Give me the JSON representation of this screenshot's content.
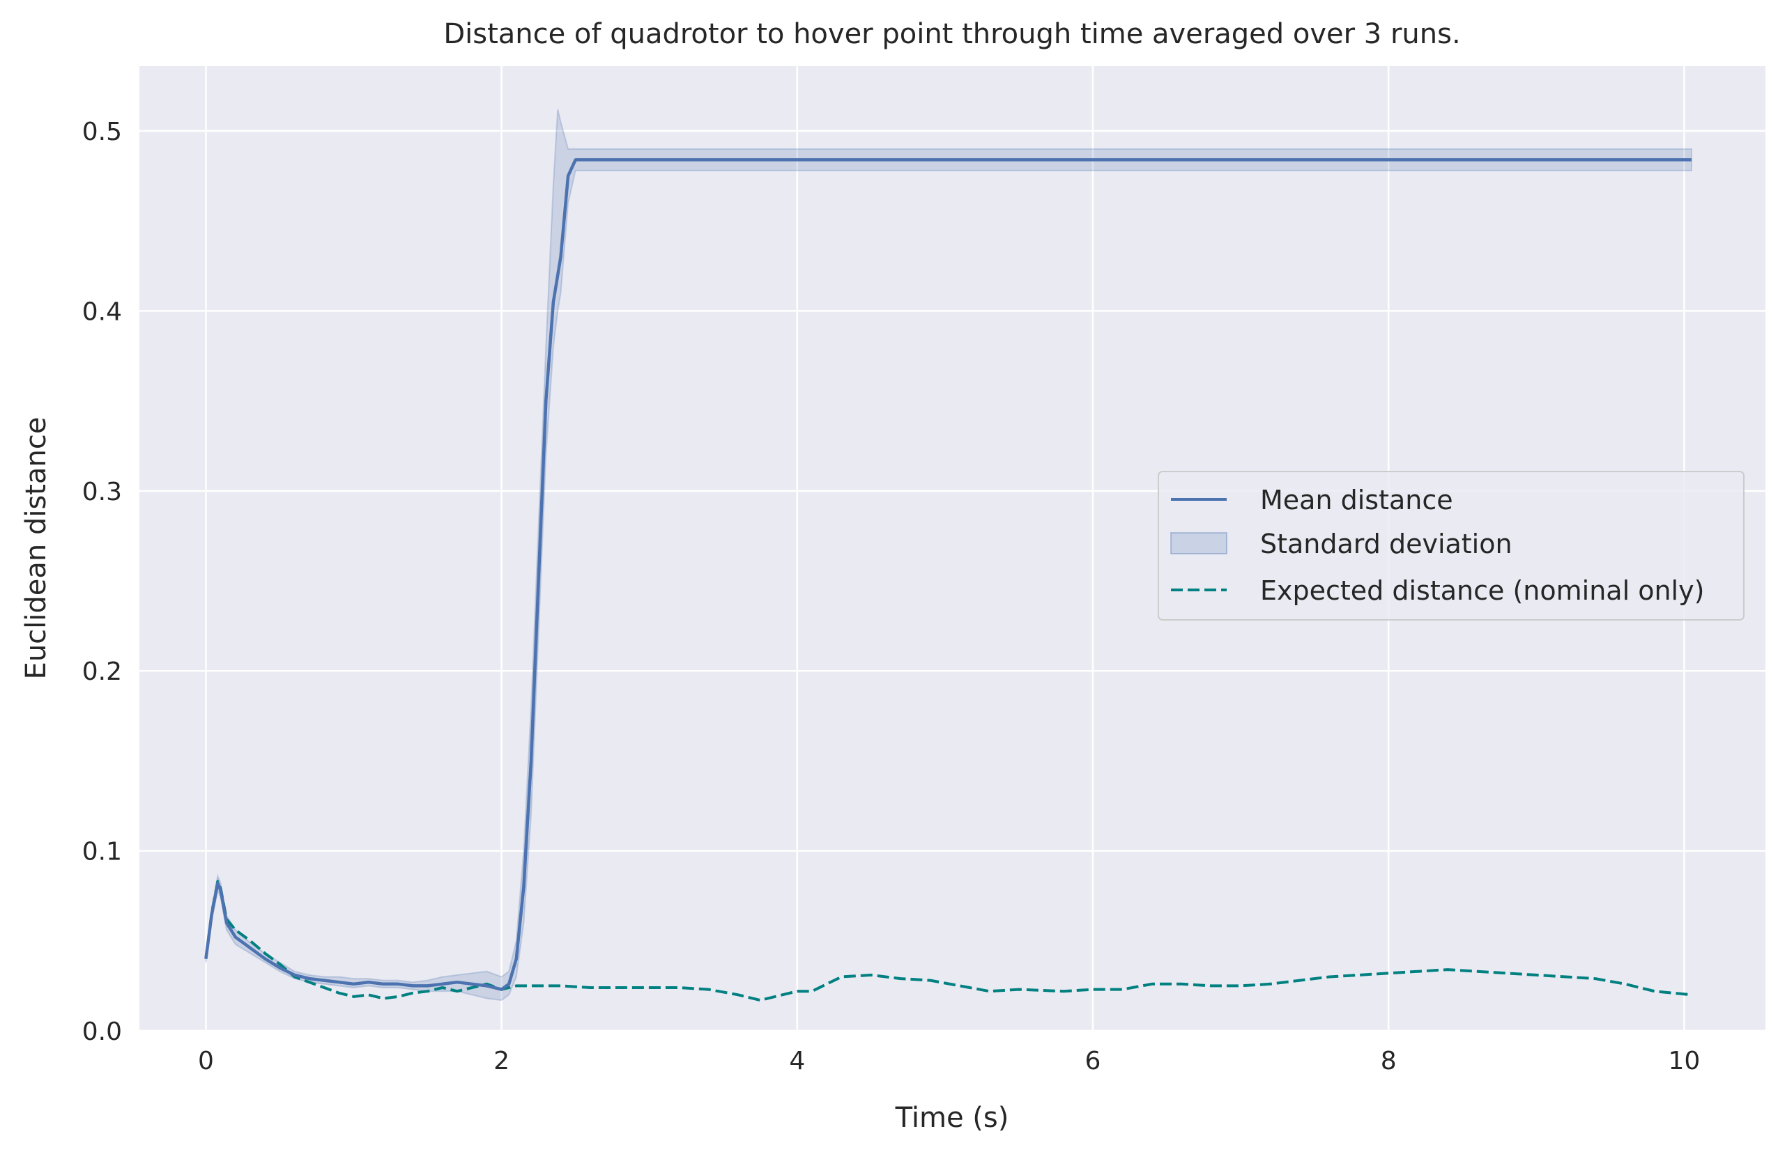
{
  "chart_data": {
    "type": "line",
    "title": "Distance of quadrotor to hover point through time averaged over 3 runs.",
    "xlabel": "Time (s)",
    "ylabel": "Euclidean distance",
    "xlim": [
      -0.45,
      10.55
    ],
    "ylim": [
      0.0,
      0.536
    ],
    "xticks": [
      "0",
      "2",
      "4",
      "6",
      "8",
      "10"
    ],
    "yticks": [
      "0.0",
      "0.1",
      "0.2",
      "0.3",
      "0.4",
      "0.5"
    ],
    "grid": true,
    "legend_position": "center right",
    "legend": [
      {
        "label": "Mean distance",
        "style": "line"
      },
      {
        "label": "Standard deviation",
        "style": "band"
      },
      {
        "label": "Expected distance (nominal only)",
        "style": "dashed"
      }
    ],
    "colors": {
      "background": "#eaeaf2",
      "grid": "#ffffff",
      "mean": "#4c72b0",
      "band": "#4c72b0",
      "expected": "#008080"
    },
    "series": [
      {
        "name": "Mean distance",
        "x": [
          0.0,
          0.04,
          0.08,
          0.1,
          0.14,
          0.2,
          0.3,
          0.4,
          0.5,
          0.6,
          0.7,
          0.8,
          0.9,
          1.0,
          1.1,
          1.2,
          1.3,
          1.4,
          1.5,
          1.6,
          1.7,
          1.8,
          1.9,
          2.0,
          2.05,
          2.1,
          2.15,
          2.2,
          2.25,
          2.3,
          2.35,
          2.4,
          2.45,
          2.5,
          10.05
        ],
        "y": [
          0.04,
          0.065,
          0.082,
          0.078,
          0.06,
          0.052,
          0.046,
          0.04,
          0.035,
          0.031,
          0.029,
          0.028,
          0.027,
          0.026,
          0.027,
          0.026,
          0.026,
          0.025,
          0.025,
          0.026,
          0.027,
          0.026,
          0.025,
          0.023,
          0.026,
          0.04,
          0.08,
          0.15,
          0.25,
          0.35,
          0.405,
          0.43,
          0.475,
          0.484,
          0.484
        ]
      },
      {
        "name": "Standard deviation",
        "x": [
          0.0,
          0.04,
          0.08,
          0.1,
          0.14,
          0.2,
          0.3,
          0.4,
          0.5,
          0.6,
          0.7,
          0.8,
          0.9,
          1.0,
          1.1,
          1.2,
          1.3,
          1.4,
          1.5,
          1.6,
          1.7,
          1.8,
          1.9,
          2.0,
          2.05,
          2.1,
          2.15,
          2.2,
          2.25,
          2.3,
          2.35,
          2.38,
          2.4,
          2.45,
          2.5,
          10.05
        ],
        "lower": [
          0.038,
          0.062,
          0.078,
          0.074,
          0.056,
          0.048,
          0.043,
          0.038,
          0.033,
          0.029,
          0.027,
          0.026,
          0.025,
          0.024,
          0.025,
          0.024,
          0.024,
          0.023,
          0.022,
          0.022,
          0.022,
          0.02,
          0.018,
          0.017,
          0.02,
          0.03,
          0.06,
          0.12,
          0.22,
          0.32,
          0.38,
          0.4,
          0.41,
          0.46,
          0.478,
          0.478
        ],
        "upper": [
          0.042,
          0.068,
          0.086,
          0.082,
          0.064,
          0.056,
          0.049,
          0.043,
          0.038,
          0.033,
          0.031,
          0.03,
          0.03,
          0.029,
          0.029,
          0.028,
          0.028,
          0.027,
          0.028,
          0.03,
          0.031,
          0.032,
          0.033,
          0.03,
          0.033,
          0.05,
          0.1,
          0.18,
          0.28,
          0.38,
          0.47,
          0.512,
          0.505,
          0.49,
          0.49,
          0.49
        ]
      },
      {
        "name": "Expected distance (nominal only)",
        "x": [
          0.0,
          0.04,
          0.08,
          0.1,
          0.14,
          0.2,
          0.3,
          0.4,
          0.5,
          0.6,
          0.7,
          0.8,
          0.9,
          1.0,
          1.1,
          1.2,
          1.3,
          1.4,
          1.5,
          1.6,
          1.7,
          1.8,
          1.9,
          2.0,
          2.1,
          2.2,
          2.4,
          2.6,
          2.8,
          3.0,
          3.2,
          3.4,
          3.6,
          3.75,
          3.9,
          4.0,
          4.1,
          4.2,
          4.3,
          4.5,
          4.7,
          4.9,
          5.1,
          5.3,
          5.5,
          5.8,
          6.0,
          6.2,
          6.4,
          6.6,
          6.8,
          7.0,
          7.2,
          7.4,
          7.6,
          7.8,
          8.0,
          8.2,
          8.4,
          8.6,
          8.8,
          9.0,
          9.2,
          9.4,
          9.6,
          9.8,
          10.05
        ],
        "y": [
          0.04,
          0.066,
          0.083,
          0.079,
          0.062,
          0.056,
          0.05,
          0.043,
          0.037,
          0.03,
          0.027,
          0.024,
          0.021,
          0.019,
          0.02,
          0.018,
          0.019,
          0.021,
          0.022,
          0.024,
          0.022,
          0.024,
          0.026,
          0.023,
          0.025,
          0.025,
          0.025,
          0.024,
          0.024,
          0.024,
          0.024,
          0.023,
          0.02,
          0.017,
          0.02,
          0.022,
          0.022,
          0.026,
          0.03,
          0.031,
          0.029,
          0.028,
          0.025,
          0.022,
          0.023,
          0.022,
          0.023,
          0.023,
          0.026,
          0.026,
          0.025,
          0.025,
          0.026,
          0.028,
          0.03,
          0.031,
          0.032,
          0.033,
          0.034,
          0.033,
          0.032,
          0.031,
          0.03,
          0.029,
          0.026,
          0.022,
          0.02
        ]
      }
    ]
  }
}
